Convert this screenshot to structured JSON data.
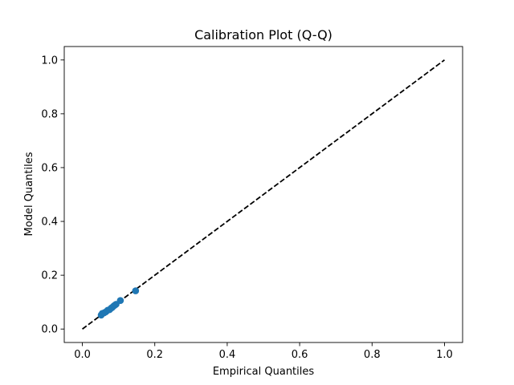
{
  "chart_data": {
    "type": "scatter",
    "title": "Calibration Plot (Q-Q)",
    "xlabel": "Empirical Quantiles",
    "ylabel": "Model Quantiles",
    "xlim": [
      -0.05,
      1.05
    ],
    "ylim": [
      -0.05,
      1.05
    ],
    "xticks": [
      "0.0",
      "0.2",
      "0.4",
      "0.6",
      "0.8",
      "1.0"
    ],
    "yticks": [
      "0.0",
      "0.2",
      "0.4",
      "0.6",
      "0.8",
      "1.0"
    ],
    "grid": false,
    "series": [
      {
        "kind": "scatter",
        "color": "#1f77b4",
        "x": [
          0.052,
          0.055,
          0.06,
          0.065,
          0.07,
          0.075,
          0.08,
          0.083,
          0.087,
          0.09,
          0.093,
          0.105,
          0.147
        ],
        "y": [
          0.052,
          0.058,
          0.06,
          0.064,
          0.07,
          0.072,
          0.078,
          0.081,
          0.086,
          0.089,
          0.092,
          0.106,
          0.142
        ]
      },
      {
        "kind": "reference-line",
        "color": "#000000",
        "dash": "dashed",
        "x": [
          0.0,
          1.0
        ],
        "y": [
          0.0,
          1.0
        ]
      }
    ]
  }
}
